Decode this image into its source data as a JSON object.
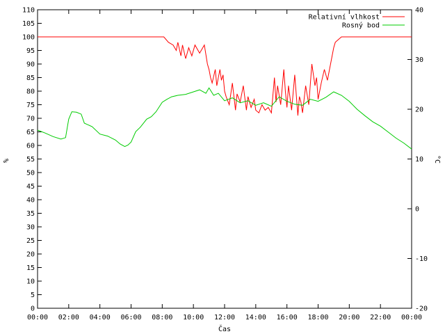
{
  "chart_data": {
    "type": "line",
    "xlabel": "Čas",
    "ylabel_left": "%",
    "ylabel_right": "°C",
    "x_ticks": [
      "00:00",
      "02:00",
      "04:00",
      "06:00",
      "08:00",
      "10:00",
      "12:00",
      "14:00",
      "16:00",
      "18:00",
      "20:00",
      "22:00",
      "00:00"
    ],
    "y_left_ticks": [
      0,
      5,
      10,
      15,
      20,
      25,
      30,
      35,
      40,
      45,
      50,
      55,
      60,
      65,
      70,
      75,
      80,
      85,
      90,
      95,
      100,
      105,
      110
    ],
    "y_right_ticks": [
      -20,
      -10,
      0,
      10,
      20,
      30,
      40
    ],
    "ylim_left": [
      0,
      110
    ],
    "ylim_right": [
      -20,
      40
    ],
    "xlim_hours": [
      0,
      24
    ],
    "grid": false,
    "legend_position": "top-right",
    "series": [
      {
        "name": "Relativní vlhkost",
        "axis": "left",
        "color": "#ff0000",
        "x": [
          0,
          1,
          2,
          3,
          4,
          5,
          6,
          7,
          8.1,
          8.4,
          8.7,
          8.9,
          9.0,
          9.2,
          9.3,
          9.5,
          9.7,
          9.9,
          10.1,
          10.4,
          10.7,
          10.9,
          11.0,
          11.1,
          11.2,
          11.4,
          11.5,
          11.7,
          11.8,
          11.9,
          12.0,
          12.1,
          12.3,
          12.5,
          12.7,
          12.8,
          13.0,
          13.2,
          13.4,
          13.5,
          13.7,
          13.9,
          14.0,
          14.2,
          14.4,
          14.6,
          14.8,
          15.0,
          15.2,
          15.3,
          15.4,
          15.6,
          15.8,
          15.9,
          16.0,
          16.1,
          16.3,
          16.5,
          16.7,
          16.8,
          16.9,
          17.0,
          17.2,
          17.4,
          17.6,
          17.8,
          17.9,
          18.0,
          18.2,
          18.4,
          18.6,
          18.8,
          19.0,
          19.1,
          19.3,
          19.5,
          19.7,
          19.9,
          20.2,
          21,
          22,
          23,
          24
        ],
        "values": [
          100,
          100,
          100,
          100,
          100,
          100,
          100,
          100,
          100,
          98,
          97,
          95,
          98,
          93,
          97,
          92,
          96,
          93,
          97,
          94,
          97,
          90,
          88,
          85,
          83,
          88,
          82,
          88,
          84,
          86,
          80,
          78,
          75,
          83,
          73,
          79,
          76,
          82,
          73,
          78,
          74,
          77,
          73,
          72,
          75,
          73,
          74,
          72,
          85,
          76,
          82,
          75,
          88,
          80,
          74,
          82,
          73,
          86,
          71,
          78,
          76,
          72,
          82,
          75,
          90,
          82,
          85,
          77,
          83,
          88,
          84,
          90,
          96,
          98,
          99,
          100,
          100,
          100,
          100,
          100,
          100,
          100,
          100
        ]
      },
      {
        "name": "Rosný bod",
        "axis": "right",
        "color": "#00cc00",
        "x": [
          0,
          0.5,
          1.0,
          1.5,
          1.8,
          2.0,
          2.2,
          2.5,
          2.8,
          3.0,
          3.5,
          4.0,
          4.5,
          5.0,
          5.3,
          5.6,
          5.8,
          6.0,
          6.3,
          6.6,
          7.0,
          7.3,
          7.6,
          8.0,
          8.3,
          8.6,
          9.0,
          9.5,
          10.0,
          10.4,
          10.8,
          11.0,
          11.3,
          11.6,
          12.0,
          12.5,
          13.0,
          13.5,
          14.0,
          14.5,
          15.0,
          15.5,
          16.0,
          16.5,
          17.0,
          17.5,
          18.0,
          18.5,
          19.0,
          19.5,
          20.0,
          20.5,
          21.0,
          21.5,
          22.0,
          22.5,
          23.0,
          23.5,
          24.0
        ],
        "values": [
          15.8,
          15.2,
          14.5,
          14.0,
          14.3,
          18.0,
          19.5,
          19.4,
          19.0,
          17.2,
          16.5,
          15.0,
          14.6,
          13.8,
          13.0,
          12.5,
          12.8,
          13.4,
          15.5,
          16.4,
          18.0,
          18.5,
          19.5,
          21.4,
          22.0,
          22.5,
          22.8,
          23.0,
          23.5,
          23.9,
          23.2,
          24.3,
          22.8,
          23.2,
          21.7,
          22.3,
          21.3,
          21.7,
          20.8,
          21.3,
          20.6,
          22.5,
          21.6,
          21.0,
          20.8,
          22.0,
          21.6,
          22.4,
          23.5,
          22.8,
          21.6,
          20.0,
          18.7,
          17.5,
          16.6,
          15.4,
          14.2,
          13.2,
          12.0
        ]
      }
    ]
  }
}
